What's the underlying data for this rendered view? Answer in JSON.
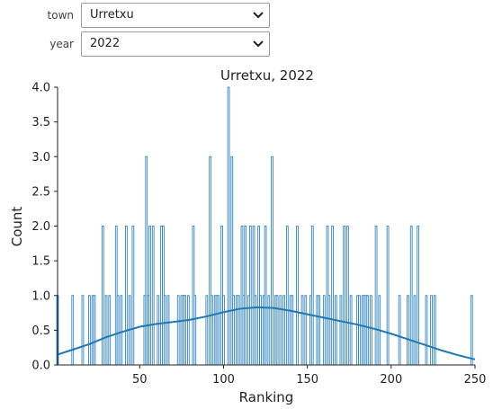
{
  "controls": {
    "town": {
      "label": "town",
      "value": "Urretxu"
    },
    "year": {
      "label": "year",
      "value": "2022"
    }
  },
  "icons": {
    "dropdown": "chevron-down-icon"
  },
  "colors": {
    "bar_edge": "#1f77b4",
    "kde_line": "#1f77b4"
  },
  "chart_data": {
    "type": "bar",
    "title": "Urretxu, 2022",
    "xlabel": "Ranking",
    "ylabel": "Count",
    "xlim": [
      1,
      250
    ],
    "ylim": [
      0,
      4
    ],
    "xticks": [
      "50",
      "100",
      "150",
      "200",
      "250"
    ],
    "yticks": [
      "0.0",
      "0.5",
      "1.0",
      "1.5",
      "2.0",
      "2.5",
      "3.0",
      "3.5",
      "4.0"
    ],
    "bins": 250,
    "counts": [
      [
        1,
        1
      ],
      [
        10,
        1
      ],
      [
        16,
        1
      ],
      [
        20,
        1
      ],
      [
        22,
        1
      ],
      [
        23,
        1
      ],
      [
        28,
        2
      ],
      [
        30,
        1
      ],
      [
        32,
        1
      ],
      [
        36,
        2
      ],
      [
        37,
        1
      ],
      [
        39,
        1
      ],
      [
        42,
        2
      ],
      [
        44,
        1
      ],
      [
        46,
        2
      ],
      [
        53,
        1
      ],
      [
        54,
        3
      ],
      [
        55,
        1
      ],
      [
        56,
        2
      ],
      [
        58,
        2
      ],
      [
        61,
        1
      ],
      [
        63,
        2
      ],
      [
        64,
        2
      ],
      [
        65,
        1
      ],
      [
        67,
        1
      ],
      [
        73,
        1
      ],
      [
        75,
        1
      ],
      [
        76,
        1
      ],
      [
        77,
        1
      ],
      [
        79,
        1
      ],
      [
        82,
        2
      ],
      [
        83,
        1
      ],
      [
        90,
        1
      ],
      [
        92,
        3
      ],
      [
        93,
        1
      ],
      [
        95,
        1
      ],
      [
        96,
        1
      ],
      [
        97,
        1
      ],
      [
        99,
        2
      ],
      [
        100,
        1
      ],
      [
        103,
        4
      ],
      [
        105,
        3
      ],
      [
        106,
        1
      ],
      [
        108,
        1
      ],
      [
        109,
        1
      ],
      [
        111,
        2
      ],
      [
        112,
        1
      ],
      [
        113,
        2
      ],
      [
        115,
        1
      ],
      [
        116,
        2
      ],
      [
        118,
        2
      ],
      [
        119,
        1
      ],
      [
        121,
        2
      ],
      [
        122,
        1
      ],
      [
        124,
        1
      ],
      [
        125,
        2
      ],
      [
        127,
        1
      ],
      [
        129,
        3
      ],
      [
        131,
        1
      ],
      [
        132,
        1
      ],
      [
        134,
        1
      ],
      [
        136,
        1
      ],
      [
        138,
        2
      ],
      [
        140,
        1
      ],
      [
        141,
        1
      ],
      [
        144,
        2
      ],
      [
        147,
        1
      ],
      [
        149,
        1
      ],
      [
        152,
        1
      ],
      [
        153,
        2
      ],
      [
        156,
        1
      ],
      [
        157,
        1
      ],
      [
        160,
        1
      ],
      [
        162,
        2
      ],
      [
        163,
        1
      ],
      [
        165,
        2
      ],
      [
        167,
        1
      ],
      [
        170,
        1
      ],
      [
        172,
        2
      ],
      [
        174,
        2
      ],
      [
        176,
        1
      ],
      [
        180,
        1
      ],
      [
        181,
        1
      ],
      [
        183,
        1
      ],
      [
        184,
        1
      ],
      [
        185,
        1
      ],
      [
        186,
        1
      ],
      [
        188,
        1
      ],
      [
        191,
        2
      ],
      [
        193,
        1
      ],
      [
        198,
        2
      ],
      [
        205,
        1
      ],
      [
        210,
        1
      ],
      [
        212,
        2
      ],
      [
        214,
        1
      ],
      [
        216,
        2
      ],
      [
        221,
        1
      ],
      [
        224,
        1
      ],
      [
        226,
        1
      ],
      [
        248,
        1
      ]
    ],
    "kde": {
      "x": [
        1,
        10,
        20,
        30,
        40,
        50,
        60,
        70,
        80,
        90,
        100,
        110,
        120,
        130,
        140,
        150,
        160,
        170,
        180,
        190,
        200,
        210,
        220,
        230,
        240,
        250
      ],
      "y": [
        0.15,
        0.22,
        0.3,
        0.4,
        0.48,
        0.55,
        0.59,
        0.62,
        0.65,
        0.7,
        0.76,
        0.81,
        0.83,
        0.82,
        0.78,
        0.73,
        0.68,
        0.63,
        0.58,
        0.52,
        0.45,
        0.37,
        0.29,
        0.21,
        0.14,
        0.08
      ]
    },
    "grid": false,
    "legend": "none"
  }
}
